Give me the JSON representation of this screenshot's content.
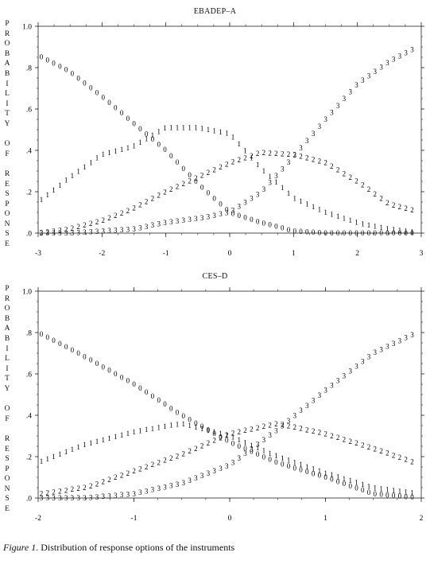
{
  "caption": {
    "figure_label": "Figure 1",
    "text": ". Distribution of response options of the instruments"
  },
  "chart_data": [
    {
      "type": "line",
      "title": "EBADEP–A",
      "ylabel": "PROBABILITY OF RESPONSE",
      "ylim": [
        0,
        1
      ],
      "xlim": [
        -3,
        3
      ],
      "y_ticks": [
        ".0",
        ".2",
        ".4",
        ".6",
        ".8",
        "1.0"
      ],
      "x_ticks": [
        "-3",
        "-2",
        "-1",
        "0",
        "1",
        "2",
        "3"
      ],
      "series": [
        {
          "name": "0",
          "x": [
            -3.0,
            -2.5,
            -2.0,
            -1.5,
            -1.0,
            -0.5,
            0.0,
            0.5,
            1.0,
            1.5,
            2.0,
            2.5,
            3.0
          ],
          "values": [
            0.86,
            0.78,
            0.66,
            0.53,
            0.4,
            0.24,
            0.1,
            0.05,
            0.01,
            0.0,
            0.0,
            0.0,
            0.0
          ]
        },
        {
          "name": "1",
          "x": [
            -3.0,
            -2.5,
            -2.0,
            -1.5,
            -1.0,
            -0.5,
            0.0,
            0.5,
            1.0,
            1.5,
            2.0,
            2.5,
            3.0
          ],
          "values": [
            0.15,
            0.27,
            0.38,
            0.42,
            0.51,
            0.51,
            0.48,
            0.31,
            0.17,
            0.1,
            0.05,
            0.02,
            0.0
          ]
        },
        {
          "name": "2",
          "x": [
            -3.0,
            -2.5,
            -2.0,
            -1.5,
            -1.0,
            -0.5,
            0.0,
            0.5,
            1.0,
            1.5,
            2.0,
            2.5,
            3.0
          ],
          "values": [
            0.0,
            0.02,
            0.06,
            0.12,
            0.2,
            0.27,
            0.34,
            0.39,
            0.38,
            0.34,
            0.25,
            0.14,
            0.1
          ]
        },
        {
          "name": "3",
          "x": [
            -3.0,
            -2.5,
            -2.0,
            -1.5,
            -1.0,
            -0.5,
            0.0,
            0.5,
            1.0,
            1.5,
            2.0,
            2.5,
            3.0
          ],
          "values": [
            0.0,
            0.0,
            0.01,
            0.02,
            0.05,
            0.07,
            0.1,
            0.2,
            0.37,
            0.55,
            0.72,
            0.83,
            0.91
          ]
        }
      ]
    },
    {
      "type": "line",
      "title": "CES–D",
      "ylabel": "PROBABILITY OF RESPONSE",
      "ylim": [
        0,
        1
      ],
      "xlim": [
        -2,
        2
      ],
      "y_ticks": [
        ".0",
        ".2",
        ".4",
        ".6",
        ".8",
        "1.0"
      ],
      "x_ticks": [
        "-2",
        "-1",
        "0",
        "1",
        "2"
      ],
      "series": [
        {
          "name": "0",
          "x": [
            -2.0,
            -1.5,
            -1.0,
            -0.5,
            0.0,
            0.5,
            1.0,
            1.5,
            2.0
          ],
          "values": [
            0.8,
            0.68,
            0.55,
            0.4,
            0.27,
            0.17,
            0.1,
            0.02,
            0.0
          ]
        },
        {
          "name": "1",
          "x": [
            -2.0,
            -1.5,
            -1.0,
            -0.5,
            0.0,
            0.5,
            1.0,
            1.5,
            2.0
          ],
          "values": [
            0.17,
            0.26,
            0.32,
            0.36,
            0.3,
            0.2,
            0.12,
            0.05,
            0.02
          ]
        },
        {
          "name": "2",
          "x": [
            -2.0,
            -1.5,
            -1.0,
            -0.5,
            0.0,
            0.5,
            1.0,
            1.5,
            2.0
          ],
          "values": [
            0.02,
            0.05,
            0.13,
            0.21,
            0.31,
            0.36,
            0.31,
            0.24,
            0.16
          ]
        },
        {
          "name": "3",
          "x": [
            -2.0,
            -1.5,
            -1.0,
            -0.5,
            0.0,
            0.5,
            1.0,
            1.5,
            2.0
          ],
          "values": [
            0.0,
            0.0,
            0.02,
            0.07,
            0.16,
            0.33,
            0.52,
            0.7,
            0.81
          ]
        }
      ]
    }
  ]
}
